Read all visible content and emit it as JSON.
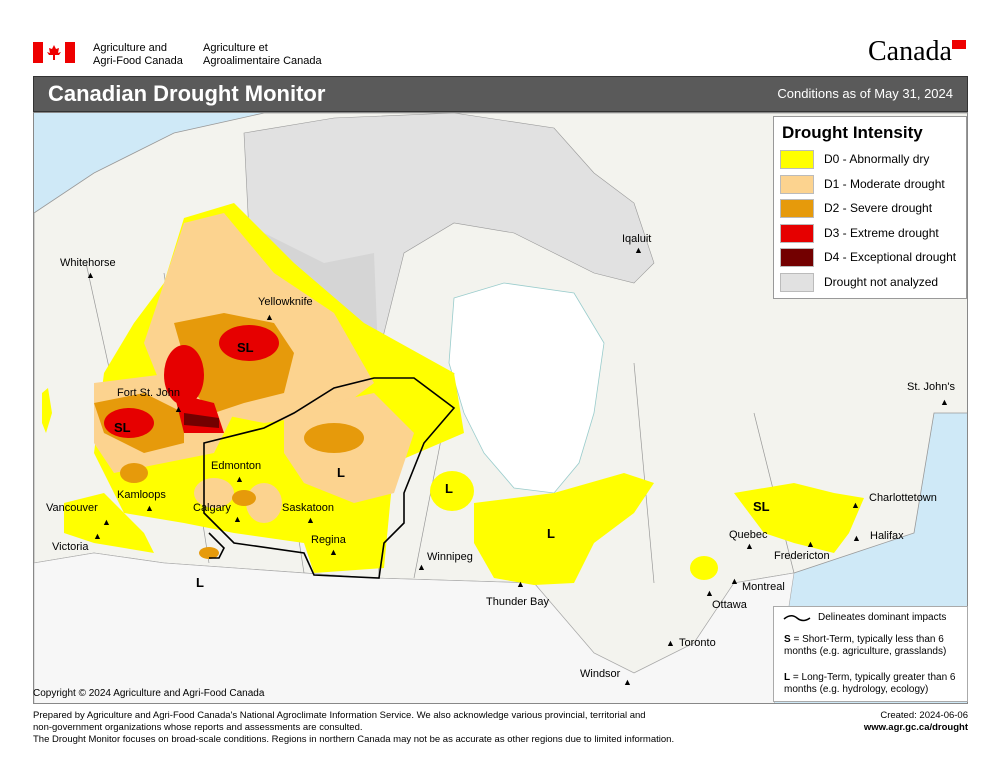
{
  "header": {
    "org_en_line1": "Agriculture and",
    "org_en_line2": "Agri-Food Canada",
    "org_fr_line1": "Agriculture et",
    "org_fr_line2": "Agroalimentaire Canada",
    "wordmark": "Canada"
  },
  "title": "Canadian Drought Monitor",
  "conditions": "Conditions as of May 31, 2024",
  "legend": {
    "title": "Drought Intensity",
    "items": [
      {
        "label": "D0 - Abnormally dry",
        "color": "#ffff00"
      },
      {
        "label": "D1 - Moderate drought",
        "color": "#fcd38f"
      },
      {
        "label": "D2 - Severe drought",
        "color": "#e69a0b"
      },
      {
        "label": "D3 - Extreme drought",
        "color": "#e60000"
      },
      {
        "label": "D4 - Exceptional drought",
        "color": "#730000"
      },
      {
        "label": "Drought not analyzed",
        "color": "#e1e1e1"
      }
    ]
  },
  "notes": {
    "line_label": "Delineates dominant impacts",
    "s_key": "S",
    "s_text": " = Short-Term, typically less than 6 months (e.g. agriculture, grasslands)",
    "l_key": "L",
    "l_text": " = Long-Term, typically greater  than 6 months (e.g. hydrology, ecology)"
  },
  "cities": {
    "whitehorse": "Whitehorse",
    "yellowknife": "Yellowknife",
    "iqaluit": "Iqaluit",
    "fort_st_john": "Fort St. John",
    "edmonton": "Edmonton",
    "kamloops": "Kamloops",
    "calgary": "Calgary",
    "saskatoon": "Saskatoon",
    "vancouver": "Vancouver",
    "victoria": "Victoria",
    "regina": "Regina",
    "winnipeg": "Winnipeg",
    "thunder_bay": "Thunder Bay",
    "st_johns": "St. John's",
    "charlottetown": "Charlottetown",
    "halifax": "Halifax",
    "quebec": "Quebec",
    "fredericton": "Fredericton",
    "montreal": "Montreal",
    "ottawa": "Ottawa",
    "toronto": "Toronto",
    "windsor": "Windsor"
  },
  "impact_labels": {
    "sl": "SL",
    "l": "L"
  },
  "copyright": "Copyright © 2024 Agriculture and Agri-Food Canada",
  "footer": {
    "line1": "Prepared by Agriculture and Agri-Food Canada's National Agroclimate Information Service.  We also acknowledge various provincial, territorial and",
    "line2": "non-government organizations whose reports and assessments are consulted.",
    "line3": "The Drought Monitor focuses on broad-scale conditions.  Regions in northern Canada may not be as accurate as other regions due to limited information.",
    "created": "Created: 2024-06-06",
    "url": "www.agr.gc.ca/drought"
  }
}
